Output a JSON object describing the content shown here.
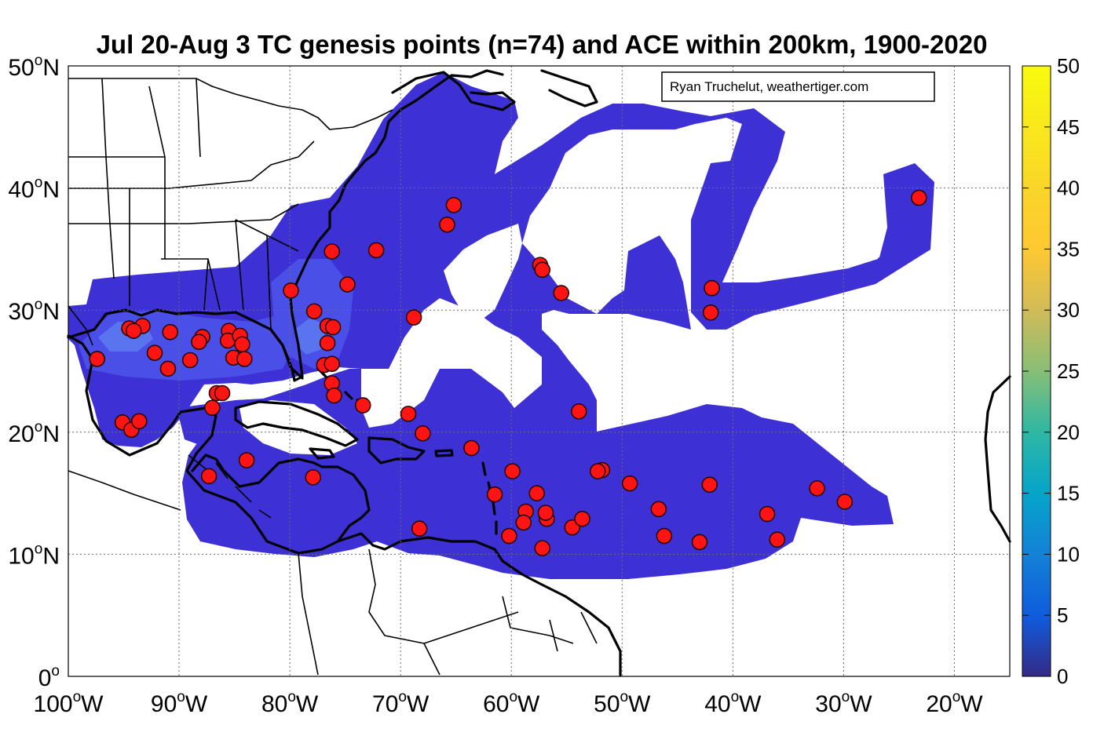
{
  "title": "Jul 20-Aug 3 TC genesis points (n=74) and ACE within 200km, 1900-2020",
  "credit": "Ryan Truchelut, weathertiger.com",
  "map": {
    "lon_range": [
      -100,
      -15
    ],
    "lat_range": [
      0,
      50
    ],
    "lon_ticks": [
      {
        "lon": -100,
        "label": "100",
        "sup": "o",
        "hemi": "W"
      },
      {
        "lon": -90,
        "label": "90",
        "sup": "o",
        "hemi": "W"
      },
      {
        "lon": -80,
        "label": "80",
        "sup": "o",
        "hemi": "W"
      },
      {
        "lon": -70,
        "label": "70",
        "sup": "o",
        "hemi": "W"
      },
      {
        "lon": -60,
        "label": "60",
        "sup": "o",
        "hemi": "W"
      },
      {
        "lon": -50,
        "label": "50",
        "sup": "o",
        "hemi": "W"
      },
      {
        "lon": -40,
        "label": "40",
        "sup": "o",
        "hemi": "W"
      },
      {
        "lon": -30,
        "label": "30",
        "sup": "o",
        "hemi": "W"
      },
      {
        "lon": -20,
        "label": "20",
        "sup": "o",
        "hemi": "W"
      }
    ],
    "lat_ticks": [
      {
        "lat": 0,
        "label": "0",
        "sup": "o",
        "hemi": ""
      },
      {
        "lat": 10,
        "label": "10",
        "sup": "o",
        "hemi": "N"
      },
      {
        "lat": 20,
        "label": "20",
        "sup": "o",
        "hemi": "N"
      },
      {
        "lat": 30,
        "label": "30",
        "sup": "o",
        "hemi": "N"
      },
      {
        "lat": 40,
        "label": "40",
        "sup": "o",
        "hemi": "N"
      },
      {
        "lat": 50,
        "label": "50",
        "sup": "o",
        "hemi": "N"
      }
    ]
  },
  "colorbar": {
    "range": [
      0,
      50
    ],
    "ticks": [
      "0",
      "5",
      "10",
      "15",
      "20",
      "25",
      "30",
      "35",
      "40",
      "45",
      "50"
    ],
    "colormap": "parula"
  },
  "colors": {
    "ace_low": "#3d31d6",
    "genesis_point": "#ff1414"
  },
  "genesis_points": [
    {
      "lon": -97.4,
      "lat": 26.0
    },
    {
      "lon": -94.5,
      "lat": 28.5
    },
    {
      "lon": -93.3,
      "lat": 28.7
    },
    {
      "lon": -94.1,
      "lat": 28.3
    },
    {
      "lon": -92.2,
      "lat": 26.5
    },
    {
      "lon": -90.8,
      "lat": 28.2
    },
    {
      "lon": -91.0,
      "lat": 25.2
    },
    {
      "lon": -89.0,
      "lat": 25.9
    },
    {
      "lon": -87.9,
      "lat": 27.8
    },
    {
      "lon": -88.2,
      "lat": 27.4
    },
    {
      "lon": -85.5,
      "lat": 28.3
    },
    {
      "lon": -85.6,
      "lat": 27.5
    },
    {
      "lon": -84.5,
      "lat": 27.9
    },
    {
      "lon": -84.3,
      "lat": 27.2
    },
    {
      "lon": -85.1,
      "lat": 26.1
    },
    {
      "lon": -84.1,
      "lat": 26.0
    },
    {
      "lon": -86.6,
      "lat": 23.2
    },
    {
      "lon": -86.1,
      "lat": 23.2
    },
    {
      "lon": -87.0,
      "lat": 22.0
    },
    {
      "lon": -95.1,
      "lat": 20.8
    },
    {
      "lon": -94.3,
      "lat": 20.2
    },
    {
      "lon": -93.6,
      "lat": 20.9
    },
    {
      "lon": -83.9,
      "lat": 17.7
    },
    {
      "lon": -87.3,
      "lat": 16.4
    },
    {
      "lon": -79.9,
      "lat": 31.6
    },
    {
      "lon": -76.2,
      "lat": 34.8
    },
    {
      "lon": -77.8,
      "lat": 29.9
    },
    {
      "lon": -74.8,
      "lat": 32.1
    },
    {
      "lon": -76.6,
      "lat": 28.7
    },
    {
      "lon": -76.1,
      "lat": 28.6
    },
    {
      "lon": -76.6,
      "lat": 27.3
    },
    {
      "lon": -76.9,
      "lat": 25.5
    },
    {
      "lon": -76.2,
      "lat": 25.6
    },
    {
      "lon": -76.2,
      "lat": 24.0
    },
    {
      "lon": -76.0,
      "lat": 23.0
    },
    {
      "lon": -73.4,
      "lat": 22.2
    },
    {
      "lon": -72.2,
      "lat": 34.9
    },
    {
      "lon": -68.8,
      "lat": 29.4
    },
    {
      "lon": -65.2,
      "lat": 38.6
    },
    {
      "lon": -65.8,
      "lat": 37.0
    },
    {
      "lon": -69.3,
      "lat": 21.5
    },
    {
      "lon": -68.0,
      "lat": 19.9
    },
    {
      "lon": -63.6,
      "lat": 18.7
    },
    {
      "lon": -77.9,
      "lat": 16.3
    },
    {
      "lon": -68.3,
      "lat": 12.1
    },
    {
      "lon": -60.2,
      "lat": 11.5
    },
    {
      "lon": -61.5,
      "lat": 14.9
    },
    {
      "lon": -59.9,
      "lat": 16.8
    },
    {
      "lon": -58.7,
      "lat": 13.5
    },
    {
      "lon": -58.9,
      "lat": 12.6
    },
    {
      "lon": -57.7,
      "lat": 15.0
    },
    {
      "lon": -56.8,
      "lat": 12.9
    },
    {
      "lon": -56.9,
      "lat": 13.4
    },
    {
      "lon": -57.2,
      "lat": 10.5
    },
    {
      "lon": -54.5,
      "lat": 12.2
    },
    {
      "lon": -53.6,
      "lat": 12.9
    },
    {
      "lon": -57.4,
      "lat": 33.7
    },
    {
      "lon": -57.2,
      "lat": 33.3
    },
    {
      "lon": -55.5,
      "lat": 31.4
    },
    {
      "lon": -53.9,
      "lat": 21.7
    },
    {
      "lon": -51.8,
      "lat": 16.9
    },
    {
      "lon": -52.2,
      "lat": 16.8
    },
    {
      "lon": -49.3,
      "lat": 15.8
    },
    {
      "lon": -46.7,
      "lat": 13.7
    },
    {
      "lon": -46.2,
      "lat": 11.5
    },
    {
      "lon": -43.0,
      "lat": 11.0
    },
    {
      "lon": -42.1,
      "lat": 15.7
    },
    {
      "lon": -41.9,
      "lat": 31.8
    },
    {
      "lon": -42.0,
      "lat": 29.8
    },
    {
      "lon": -36.9,
      "lat": 13.3
    },
    {
      "lon": -36.0,
      "lat": 11.2
    },
    {
      "lon": -32.4,
      "lat": 15.4
    },
    {
      "lon": -29.9,
      "lat": 14.3
    },
    {
      "lon": -23.2,
      "lat": 39.2
    }
  ]
}
